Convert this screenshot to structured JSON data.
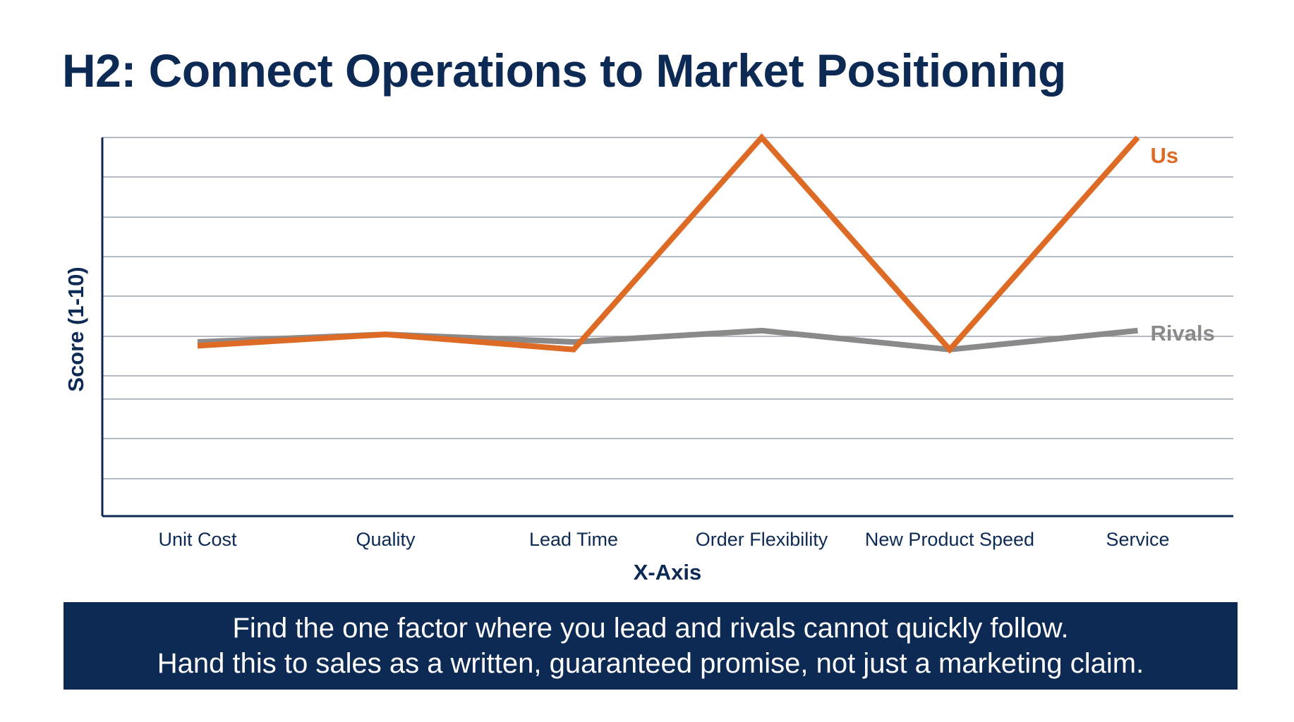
{
  "title": "H2: Connect Operations to Market Positioning",
  "colors": {
    "us": "#dd6b25",
    "rivals": "#8a8a8a",
    "navy": "#0d2a55",
    "grid": "#9aa4b0"
  },
  "chart_data": {
    "type": "line",
    "ylabel": "Score (1-10)",
    "xlabel": "X-Axis",
    "categories": [
      "Unit Cost",
      "Quality",
      "Lead Time",
      "Order Flexibility",
      "New Product Speed",
      "Service"
    ],
    "ylim": [
      0,
      10
    ],
    "grid": true,
    "series": [
      {
        "name": "Us",
        "color": "#dd6b25",
        "values": [
          4.5,
          4.8,
          4.4,
          10,
          4.4,
          10
        ]
      },
      {
        "name": "Rivals",
        "color": "#8a8a8a",
        "values": [
          4.6,
          4.8,
          4.6,
          4.9,
          4.4,
          4.9
        ]
      }
    ]
  },
  "banner": {
    "line1": "Find the one factor where you lead and rivals cannot quickly follow.",
    "line2": "Hand this to sales as a written, guaranteed promise, not just a marketing claim."
  }
}
